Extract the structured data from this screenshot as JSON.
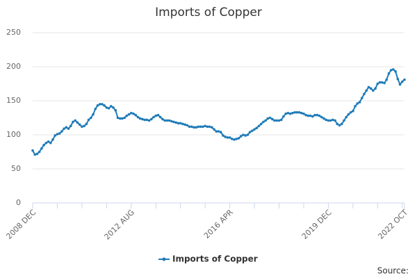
{
  "chart_data": {
    "type": "line",
    "title": "Imports of Copper",
    "source": "Source:",
    "categories": [
      "2008 DEC",
      null,
      null,
      null,
      null,
      null,
      null,
      null,
      null,
      null,
      null,
      null,
      null,
      null,
      null,
      null,
      null,
      null,
      null,
      null,
      null,
      null,
      null,
      null,
      null,
      null,
      null,
      null,
      null,
      null,
      null,
      null,
      null,
      null,
      null,
      null,
      null,
      null,
      null,
      null,
      null,
      null,
      null,
      null,
      "2012 AUG",
      null,
      null,
      null,
      null,
      null,
      null,
      null,
      null,
      null,
      null,
      null,
      null,
      null,
      null,
      null,
      null,
      null,
      null,
      null,
      null,
      null,
      null,
      null,
      null,
      null,
      null,
      null,
      null,
      null,
      null,
      null,
      null,
      null,
      null,
      null,
      null,
      null,
      null,
      null,
      null,
      null,
      null,
      null,
      "2016 APR",
      null,
      null,
      null,
      null,
      null,
      null,
      null,
      null,
      null,
      null,
      null,
      null,
      null,
      null,
      null,
      null,
      null,
      null,
      null,
      null,
      null,
      null,
      null,
      null,
      null,
      null,
      null,
      null,
      null,
      null,
      null,
      null,
      null,
      null,
      null,
      null,
      null,
      null,
      null,
      null,
      null,
      null,
      null,
      "2019 DEC",
      null,
      null,
      null,
      null,
      null,
      null,
      null,
      null,
      null,
      null,
      null,
      null,
      null,
      null,
      null,
      null,
      null,
      null,
      null,
      null,
      null,
      null,
      null,
      null,
      null,
      null,
      null,
      null,
      null,
      null,
      null,
      null,
      null,
      "2022 OCT"
    ],
    "series": [
      {
        "name": "Imports of Copper",
        "color": "#1f7bb8",
        "values": [
          77,
          71,
          72,
          75,
          80,
          85,
          88,
          90,
          88,
          93,
          99,
          101,
          102,
          105,
          109,
          111,
          109,
          113,
          119,
          121,
          118,
          115,
          112,
          113,
          116,
          122,
          125,
          130,
          138,
          143,
          145,
          145,
          143,
          140,
          139,
          142,
          140,
          136,
          125,
          124,
          124,
          125,
          128,
          130,
          132,
          131,
          129,
          126,
          124,
          123,
          122,
          122,
          121,
          123,
          126,
          128,
          129,
          126,
          123,
          121,
          121,
          121,
          120,
          119,
          118,
          117,
          117,
          116,
          115,
          114,
          112,
          112,
          111,
          111,
          112,
          112,
          112,
          113,
          112,
          112,
          111,
          108,
          105,
          105,
          104,
          99,
          97,
          96,
          96,
          94,
          93,
          94,
          95,
          98,
          100,
          99,
          100,
          104,
          106,
          108,
          110,
          113,
          116,
          119,
          121,
          124,
          125,
          123,
          121,
          121,
          121,
          122,
          127,
          131,
          132,
          131,
          132,
          133,
          133,
          133,
          132,
          131,
          129,
          128,
          128,
          127,
          129,
          129,
          128,
          126,
          124,
          122,
          121,
          121,
          122,
          121,
          116,
          114,
          116,
          121,
          126,
          130,
          133,
          135,
          142,
          146,
          148,
          154,
          160,
          165,
          170,
          168,
          165,
          168,
          175,
          177,
          177,
          176,
          181,
          190,
          195,
          196,
          193,
          182,
          174,
          178,
          181
        ]
      }
    ],
    "ylim": [
      0,
      250
    ],
    "yticks": [
      0,
      50,
      100,
      150,
      200,
      250
    ],
    "grid": true
  }
}
